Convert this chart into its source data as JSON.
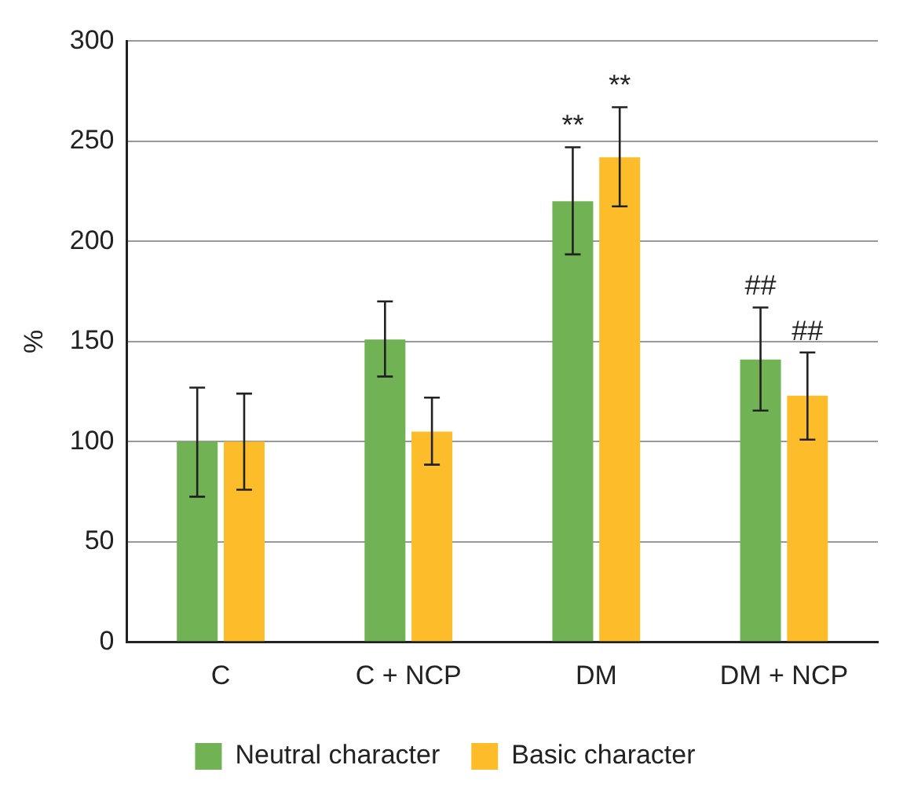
{
  "chart_data": {
    "type": "bar",
    "ylabel": "%",
    "categories": [
      "C",
      "C + NCP",
      "DM",
      "DM + NCP"
    ],
    "series": [
      {
        "name": "Neutral character",
        "color": "#70b254",
        "values": [
          100,
          151,
          220,
          141
        ],
        "errors": [
          [
            72.5,
            127
          ],
          [
            132.5,
            170
          ],
          [
            193.5,
            247
          ],
          [
            115.5,
            167
          ]
        ]
      },
      {
        "name": "Basic character",
        "color": "#fdbd2a",
        "values": [
          100,
          105,
          242,
          123
        ],
        "errors": [
          [
            76,
            124
          ],
          [
            88.5,
            122
          ],
          [
            217.5,
            267
          ],
          [
            101,
            144.5
          ]
        ]
      }
    ],
    "annotations": [
      "**",
      "**",
      "##",
      "##"
    ],
    "ylim": [
      0,
      300
    ],
    "yticks": [
      0,
      50,
      100,
      150,
      200,
      250,
      300
    ],
    "grid": "y",
    "legend": "bottom"
  }
}
